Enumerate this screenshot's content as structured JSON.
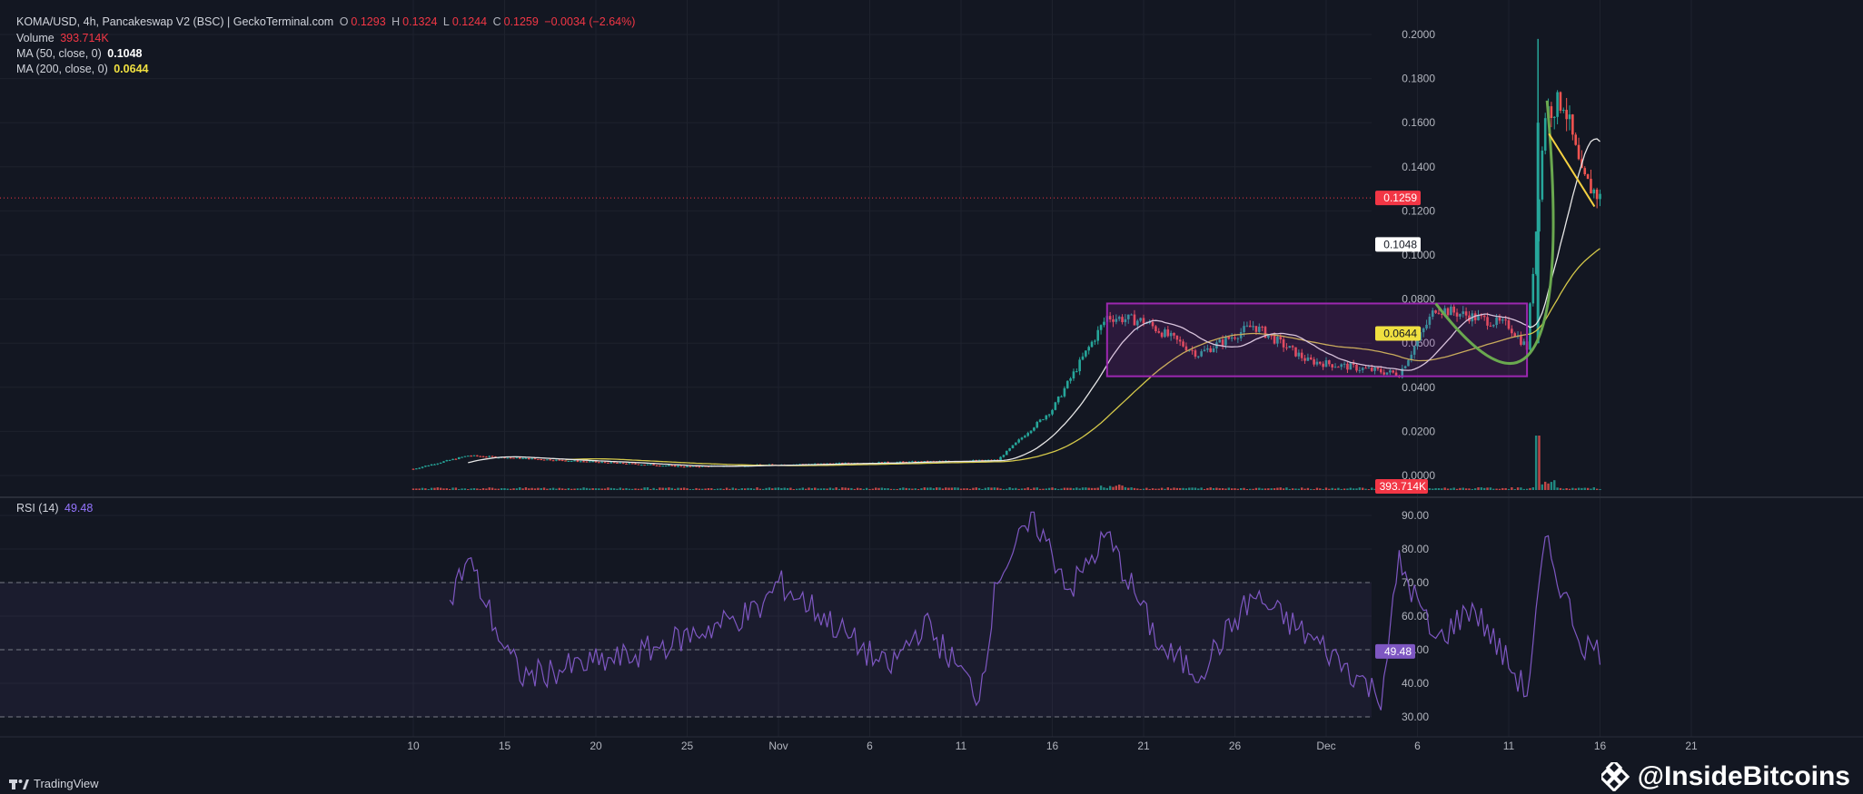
{
  "header": {
    "symbol": "KOMA/USD, 4h, Pancakeswap V2 (BSC) | GeckoTerminal.com",
    "o_label": "O",
    "o_value": "0.1293",
    "h_label": "H",
    "h_value": "0.1324",
    "l_label": "L",
    "l_value": "0.1244",
    "c_label": "C",
    "c_value": "0.1259",
    "change": "−0.0034 (−2.64%)",
    "volume_label": "Volume",
    "volume_value": "393.714K",
    "ma50_label": "MA (50, close, 0)",
    "ma50_value": "0.1048",
    "ma200_label": "MA (200, close, 0)",
    "ma200_value": "0.0644",
    "rsi_label": "RSI (14)",
    "rsi_value": "49.48"
  },
  "footer": {
    "brand": "TradingView",
    "brand_icon": "tradingview-logo-icon"
  },
  "watermark": {
    "text": "@InsideBitcoins",
    "icon": "inside-bitcoins-logo-icon"
  },
  "colors": {
    "background": "#131722",
    "up": "#26a69a",
    "down": "#ef5350",
    "ma50": "#e6e6e6",
    "ma200": "#d4c84a",
    "rsi": "#7e57c2",
    "box": "#9c27b0",
    "curve": "#6aa84f",
    "trendline": "#f5d142",
    "price_tag": "#f23645"
  },
  "chart_data": [
    {
      "type": "candlestick",
      "title": "KOMA/USD, 4h",
      "x_tick_labels": [
        "10",
        "15",
        "20",
        "25",
        "Nov",
        "6",
        "11",
        "16",
        "21",
        "26",
        "Dec",
        "6",
        "11",
        "16",
        "21"
      ],
      "y_ticks": [
        "0.0000",
        "0.0200",
        "0.0400",
        "0.0600",
        "0.0800",
        "0.1000",
        "0.1200",
        "0.1400",
        "0.1600",
        "0.1800",
        "0.2000"
      ],
      "ylim": [
        0,
        0.2
      ],
      "last_price": "0.1259",
      "ma50_last": "0.1048",
      "ma200_last": "0.0644",
      "volume_last": "393.714K",
      "key_points": [
        {
          "date": "Oct 10",
          "close": 0.003
        },
        {
          "date": "Oct 13",
          "close": 0.009
        },
        {
          "date": "Oct 25",
          "close": 0.004
        },
        {
          "date": "Nov 11",
          "close": 0.007
        },
        {
          "date": "Nov 14",
          "close": 0.03
        },
        {
          "date": "Nov 17",
          "close": 0.072
        },
        {
          "date": "Nov 19",
          "close": 0.07
        },
        {
          "date": "Nov 22",
          "close": 0.055
        },
        {
          "date": "Nov 25",
          "close": 0.068
        },
        {
          "date": "Nov 28",
          "close": 0.052
        },
        {
          "date": "Dec 3",
          "close": 0.046
        },
        {
          "date": "Dec 5",
          "close": 0.076
        },
        {
          "date": "Dec 9",
          "close": 0.068
        },
        {
          "date": "Dec 10",
          "close": 0.058
        },
        {
          "date": "Dec 11",
          "close": 0.165
        },
        {
          "date": "Dec 12",
          "close": 0.17
        },
        {
          "date": "Dec 13",
          "close": 0.135
        },
        {
          "date": "Dec 14",
          "close": 0.1259
        }
      ],
      "box_range": {
        "from": "Nov 17",
        "to": "Dec 10",
        "low": 0.045,
        "high": 0.078
      }
    },
    {
      "type": "line",
      "title": "RSI (14)",
      "y_ticks": [
        "30.00",
        "40.00",
        "50.00",
        "60.00",
        "70.00",
        "80.00",
        "90.00"
      ],
      "ylim": [
        28,
        94
      ],
      "bands": [
        30,
        50,
        70
      ],
      "last_value": "49.48",
      "key_points": [
        {
          "date": "Oct 12",
          "value": 65
        },
        {
          "date": "Oct 13",
          "value": 77
        },
        {
          "date": "Oct 15",
          "value": 50
        },
        {
          "date": "Oct 16",
          "value": 42
        },
        {
          "date": "Oct 22",
          "value": 48
        },
        {
          "date": "Oct 29",
          "value": 62
        },
        {
          "date": "Oct 30",
          "value": 70
        },
        {
          "date": "Nov 1",
          "value": 62
        },
        {
          "date": "Nov 5",
          "value": 44
        },
        {
          "date": "Nov 7",
          "value": 58
        },
        {
          "date": "Nov 10",
          "value": 36
        },
        {
          "date": "Nov 11",
          "value": 72
        },
        {
          "date": "Nov 13",
          "value": 89
        },
        {
          "date": "Nov 15",
          "value": 68
        },
        {
          "date": "Nov 17",
          "value": 84
        },
        {
          "date": "Nov 20",
          "value": 50
        },
        {
          "date": "Nov 22",
          "value": 43
        },
        {
          "date": "Nov 25",
          "value": 66
        },
        {
          "date": "Nov 29",
          "value": 50
        },
        {
          "date": "Dec 2",
          "value": 36
        },
        {
          "date": "Dec 3",
          "value": 76
        },
        {
          "date": "Dec 5",
          "value": 52
        },
        {
          "date": "Dec 7",
          "value": 63
        },
        {
          "date": "Dec 10",
          "value": 37
        },
        {
          "date": "Dec 11",
          "value": 82
        },
        {
          "date": "Dec 13",
          "value": 52
        },
        {
          "date": "Dec 14",
          "value": 49.48
        }
      ]
    }
  ]
}
